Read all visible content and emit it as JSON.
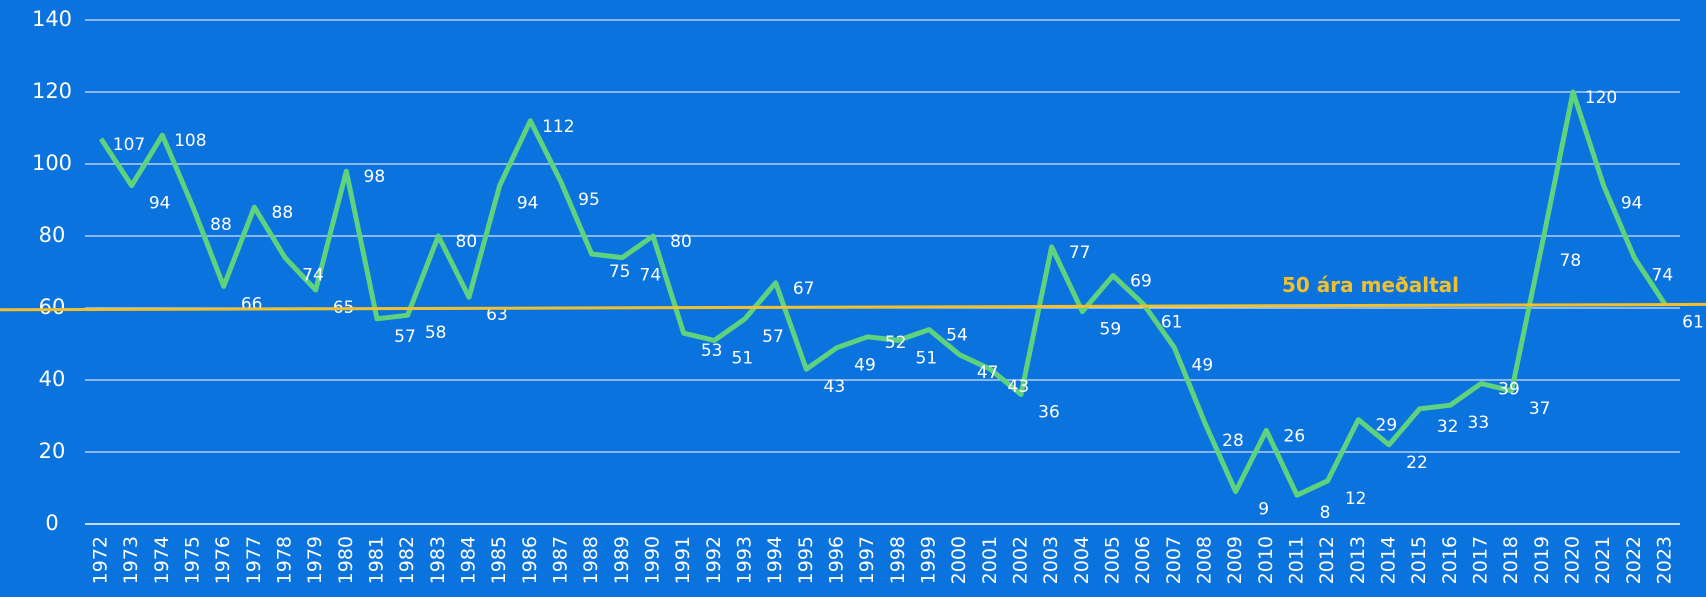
{
  "chart_data": {
    "type": "line",
    "categories": [
      "1972",
      "1973",
      "1974",
      "1975",
      "1976",
      "1977",
      "1978",
      "1979",
      "1980",
      "1981",
      "1982",
      "1983",
      "1984",
      "1985",
      "1986",
      "1987",
      "1988",
      "1989",
      "1990",
      "1991",
      "1992",
      "1993",
      "1994",
      "1995",
      "1996",
      "1997",
      "1998",
      "1999",
      "2000",
      "2001",
      "2002",
      "2003",
      "2004",
      "2005",
      "2006",
      "2007",
      "2008",
      "2009",
      "2010",
      "2011",
      "2012",
      "2013",
      "2014",
      "2015",
      "2016",
      "2017",
      "2018",
      "2019",
      "2020",
      "2021",
      "2022",
      "2023"
    ],
    "series": [
      {
        "color": "#5fd27e",
        "values": [
          107,
          94,
          108,
          88,
          66,
          88,
          74,
          65,
          98,
          57,
          58,
          80,
          63,
          94,
          112,
          95,
          75,
          74,
          80,
          53,
          51,
          57,
          67,
          43,
          49,
          52,
          51,
          54,
          47,
          43,
          36,
          77,
          59,
          69,
          61,
          49,
          28,
          9,
          26,
          8,
          12,
          29,
          22,
          32,
          33,
          39,
          37,
          78,
          120,
          94,
          74,
          61
        ]
      }
    ],
    "average": {
      "label": "50 ára meðaltal",
      "color": "#f2c02c",
      "values": [
        59.5,
        61
      ]
    },
    "ylim": [
      0,
      140
    ],
    "yticks": [
      0,
      20,
      40,
      60,
      80,
      100,
      120,
      140
    ],
    "grid": true
  }
}
